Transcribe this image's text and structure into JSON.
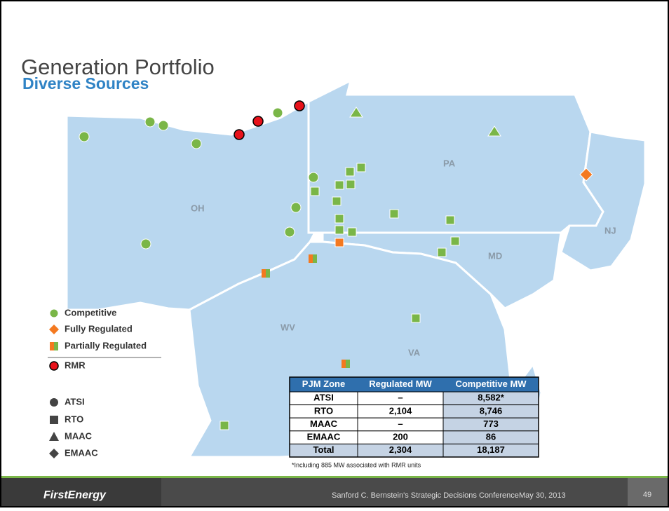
{
  "header": {
    "title": "Generation Portfolio",
    "subtitle": "Diverse Sources"
  },
  "map": {
    "states": [
      "OH",
      "PA",
      "NJ",
      "MD",
      "WV",
      "VA"
    ]
  },
  "legend": {
    "types": [
      "Competitive",
      "Fully Regulated",
      "Partially Regulated",
      "RMR"
    ],
    "zones": [
      "ATSI",
      "RTO",
      "MAAC",
      "EMAAC"
    ]
  },
  "table": {
    "header": [
      "PJM Zone",
      "Regulated MW",
      "Competitive MW"
    ],
    "rows": [
      [
        "ATSI",
        "–",
        "8,582*"
      ],
      [
        "RTO",
        "2,104",
        "8,746"
      ],
      [
        "MAAC",
        "–",
        "773"
      ],
      [
        "EMAAC",
        "200",
        "86"
      ],
      [
        "Total",
        "2,304",
        "18,187"
      ]
    ],
    "footnote": "*Including 885 MW associated with RMR units"
  },
  "footer": {
    "logo": "FirstEnergy",
    "conference": "Sanford C. Bernstein's Strategic Decisions Conference",
    "date": "May 30, 2013",
    "page": "49"
  }
}
